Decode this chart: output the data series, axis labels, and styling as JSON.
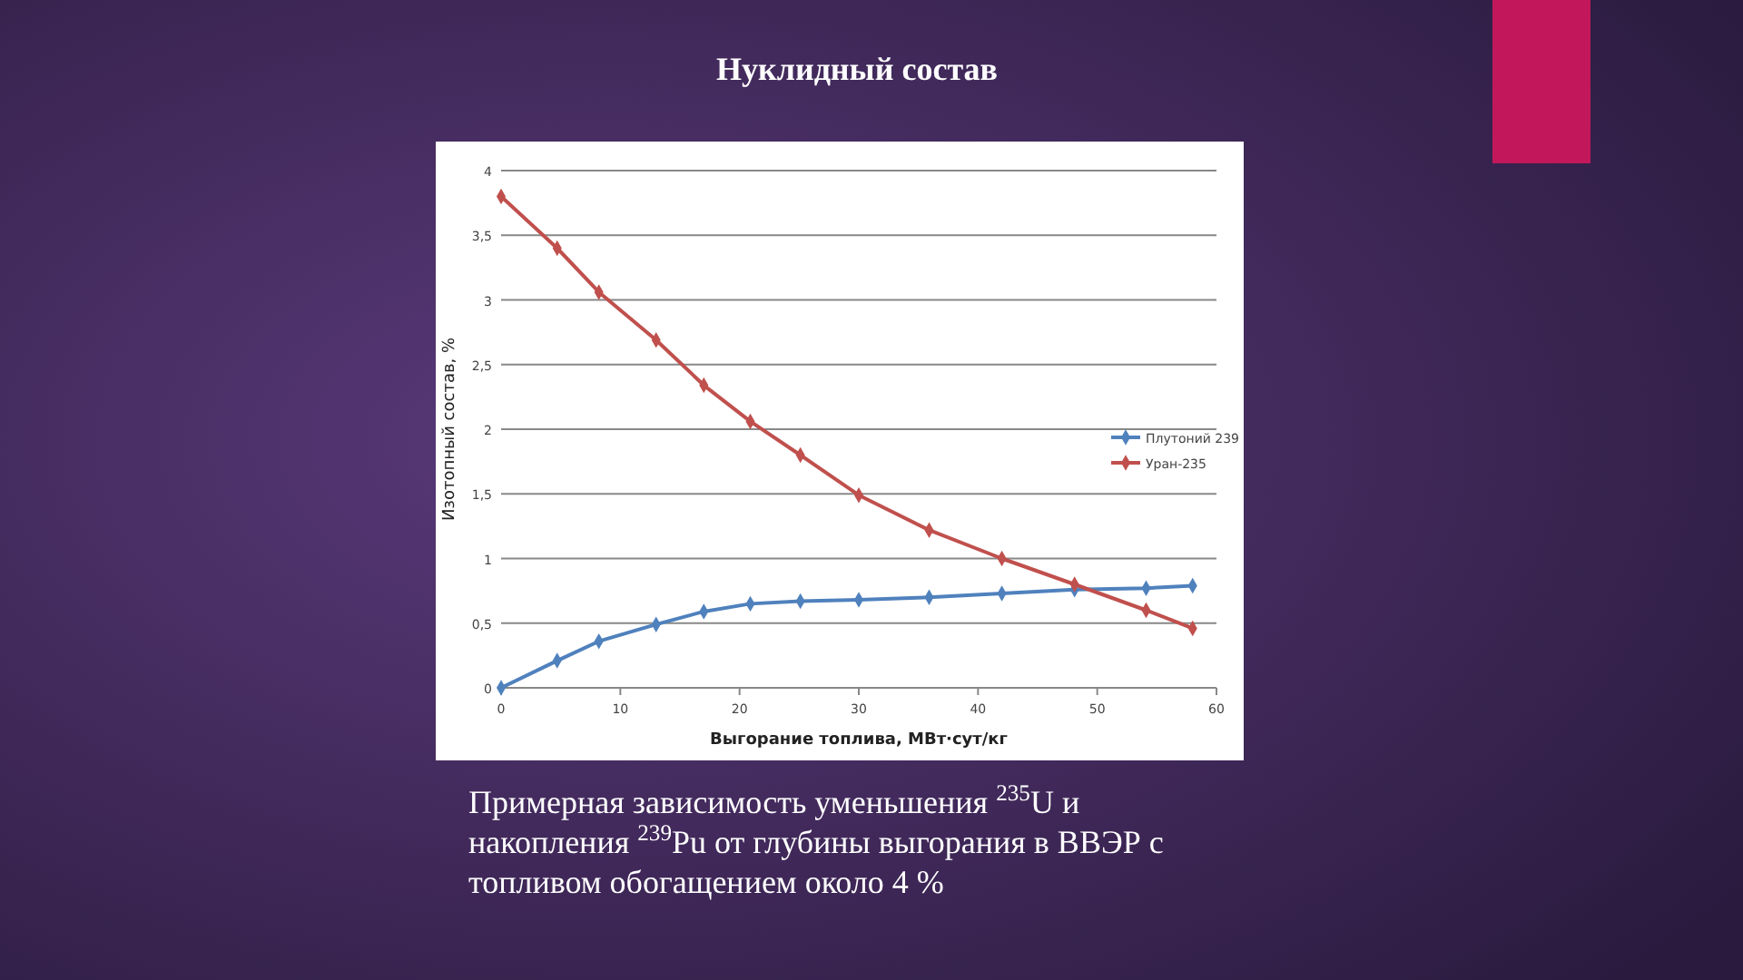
{
  "chart_data": {
    "type": "line",
    "title": "Нуклидный состав",
    "xlabel": "Выгорание топлива, МВт·сут/кг",
    "ylabel": "Изотопный состав, %",
    "annotations": [
      "Примерная зависимость уменьшения $^{235}$U и накопления $^{239}$Pu от глубины выгорания в ВВЭР с топливом обогащением около 4 %"
    ],
    "x": [
      0,
      4.7,
      8.2,
      13,
      17,
      20.9,
      25.1,
      30,
      35.9,
      42,
      48.1,
      54.1,
      58
    ],
    "series": [
      {
        "name": "Плутоний 239",
        "color": "#4f81bd",
        "values": [
          0,
          0.21,
          0.36,
          0.49,
          0.59,
          0.65,
          0.67,
          0.68,
          0.7,
          0.73,
          0.76,
          0.77,
          0.79
        ]
      },
      {
        "name": "Уран-235",
        "color": "#c0504d",
        "values": [
          3.8,
          3.4,
          3.06,
          2.69,
          2.34,
          2.06,
          1.8,
          1.49,
          1.22,
          1.0,
          0.8,
          0.6,
          0.46
        ]
      }
    ],
    "xlim": [
      0,
      60
    ],
    "xticks": [
      0,
      10,
      20,
      30,
      40,
      50,
      60
    ],
    "ylim": [
      0,
      4
    ],
    "yticks": [
      0,
      {
        "value": 0.5,
        "label": "0,5"
      },
      1,
      {
        "value": 1.5,
        "label": "1,5"
      },
      2,
      {
        "value": 2.5,
        "label": "2,5"
      },
      3,
      {
        "value": 3.5,
        "label": "3,5"
      },
      4
    ],
    "grid": "y",
    "legend": "right",
    "marker": "diamond",
    "line_style": "solid"
  }
}
